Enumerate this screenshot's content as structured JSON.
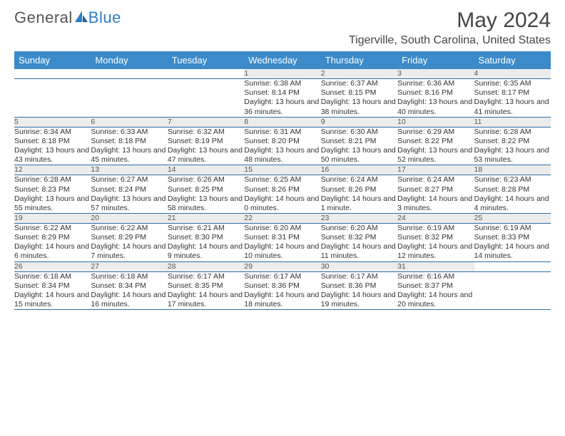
{
  "brand": {
    "part1": "General",
    "part2": "Blue"
  },
  "title": "May 2024",
  "location": "Tigerville, South Carolina, United States",
  "colors": {
    "header_bg": "#3b8bca",
    "header_text": "#ffffff",
    "daynum_bg": "#ececec",
    "rule": "#2d6fa8",
    "text": "#333333",
    "brand_gray": "#555555",
    "brand_blue": "#2d7fc4"
  },
  "weekdays": [
    "Sunday",
    "Monday",
    "Tuesday",
    "Wednesday",
    "Thursday",
    "Friday",
    "Saturday"
  ],
  "weeks": [
    [
      null,
      null,
      null,
      {
        "n": "1",
        "sr": "6:38 AM",
        "ss": "8:14 PM",
        "dl": "13 hours and 36 minutes."
      },
      {
        "n": "2",
        "sr": "6:37 AM",
        "ss": "8:15 PM",
        "dl": "13 hours and 38 minutes."
      },
      {
        "n": "3",
        "sr": "6:36 AM",
        "ss": "8:16 PM",
        "dl": "13 hours and 40 minutes."
      },
      {
        "n": "4",
        "sr": "6:35 AM",
        "ss": "8:17 PM",
        "dl": "13 hours and 41 minutes."
      }
    ],
    [
      {
        "n": "5",
        "sr": "6:34 AM",
        "ss": "8:18 PM",
        "dl": "13 hours and 43 minutes."
      },
      {
        "n": "6",
        "sr": "6:33 AM",
        "ss": "8:18 PM",
        "dl": "13 hours and 45 minutes."
      },
      {
        "n": "7",
        "sr": "6:32 AM",
        "ss": "8:19 PM",
        "dl": "13 hours and 47 minutes."
      },
      {
        "n": "8",
        "sr": "6:31 AM",
        "ss": "8:20 PM",
        "dl": "13 hours and 48 minutes."
      },
      {
        "n": "9",
        "sr": "6:30 AM",
        "ss": "8:21 PM",
        "dl": "13 hours and 50 minutes."
      },
      {
        "n": "10",
        "sr": "6:29 AM",
        "ss": "8:22 PM",
        "dl": "13 hours and 52 minutes."
      },
      {
        "n": "11",
        "sr": "6:28 AM",
        "ss": "8:22 PM",
        "dl": "13 hours and 53 minutes."
      }
    ],
    [
      {
        "n": "12",
        "sr": "6:28 AM",
        "ss": "8:23 PM",
        "dl": "13 hours and 55 minutes."
      },
      {
        "n": "13",
        "sr": "6:27 AM",
        "ss": "8:24 PM",
        "dl": "13 hours and 57 minutes."
      },
      {
        "n": "14",
        "sr": "6:26 AM",
        "ss": "8:25 PM",
        "dl": "13 hours and 58 minutes."
      },
      {
        "n": "15",
        "sr": "6:25 AM",
        "ss": "8:26 PM",
        "dl": "14 hours and 0 minutes."
      },
      {
        "n": "16",
        "sr": "6:24 AM",
        "ss": "8:26 PM",
        "dl": "14 hours and 1 minute."
      },
      {
        "n": "17",
        "sr": "6:24 AM",
        "ss": "8:27 PM",
        "dl": "14 hours and 3 minutes."
      },
      {
        "n": "18",
        "sr": "6:23 AM",
        "ss": "8:28 PM",
        "dl": "14 hours and 4 minutes."
      }
    ],
    [
      {
        "n": "19",
        "sr": "6:22 AM",
        "ss": "8:29 PM",
        "dl": "14 hours and 6 minutes."
      },
      {
        "n": "20",
        "sr": "6:22 AM",
        "ss": "8:29 PM",
        "dl": "14 hours and 7 minutes."
      },
      {
        "n": "21",
        "sr": "6:21 AM",
        "ss": "8:30 PM",
        "dl": "14 hours and 9 minutes."
      },
      {
        "n": "22",
        "sr": "6:20 AM",
        "ss": "8:31 PM",
        "dl": "14 hours and 10 minutes."
      },
      {
        "n": "23",
        "sr": "6:20 AM",
        "ss": "8:32 PM",
        "dl": "14 hours and 11 minutes."
      },
      {
        "n": "24",
        "sr": "6:19 AM",
        "ss": "8:32 PM",
        "dl": "14 hours and 12 minutes."
      },
      {
        "n": "25",
        "sr": "6:19 AM",
        "ss": "8:33 PM",
        "dl": "14 hours and 14 minutes."
      }
    ],
    [
      {
        "n": "26",
        "sr": "6:18 AM",
        "ss": "8:34 PM",
        "dl": "14 hours and 15 minutes."
      },
      {
        "n": "27",
        "sr": "6:18 AM",
        "ss": "8:34 PM",
        "dl": "14 hours and 16 minutes."
      },
      {
        "n": "28",
        "sr": "6:17 AM",
        "ss": "8:35 PM",
        "dl": "14 hours and 17 minutes."
      },
      {
        "n": "29",
        "sr": "6:17 AM",
        "ss": "8:36 PM",
        "dl": "14 hours and 18 minutes."
      },
      {
        "n": "30",
        "sr": "6:17 AM",
        "ss": "8:36 PM",
        "dl": "14 hours and 19 minutes."
      },
      {
        "n": "31",
        "sr": "6:16 AM",
        "ss": "8:37 PM",
        "dl": "14 hours and 20 minutes."
      },
      null
    ]
  ],
  "labels": {
    "sunrise": "Sunrise:",
    "sunset": "Sunset:",
    "daylight": "Daylight:"
  }
}
